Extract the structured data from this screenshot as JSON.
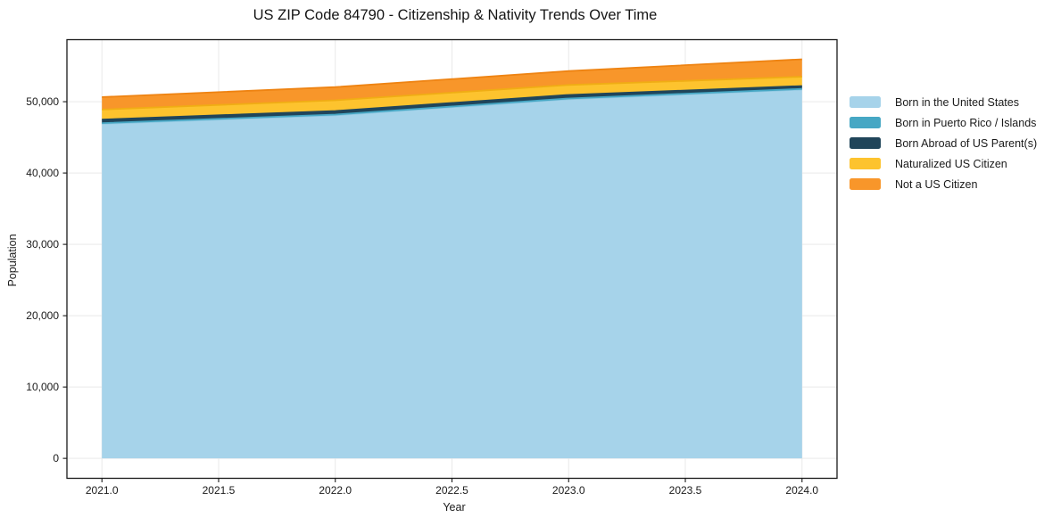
{
  "title": "US ZIP Code 84790 - Citizenship & Nativity Trends Over Time",
  "chart_data": {
    "type": "area",
    "stacked": true,
    "title": "US ZIP Code 84790 - Citizenship & Nativity Trends Over Time",
    "xlabel": "Year",
    "ylabel": "Population",
    "x": [
      2021,
      2022,
      2023,
      2024
    ],
    "series": [
      {
        "name": "Born in the United States",
        "color": "#a6d3ea",
        "edge_color": "#8fc8e2",
        "values": [
          46900,
          48100,
          50350,
          51700
        ]
      },
      {
        "name": "Born in Puerto Rico / Islands",
        "color": "#46a7c4",
        "edge_color": "#46a7c4",
        "values": [
          100,
          100,
          100,
          100
        ]
      },
      {
        "name": "Born Abroad of US Parent(s)",
        "color": "#20455a",
        "edge_color": "#20455a",
        "values": [
          500,
          500,
          500,
          400
        ]
      },
      {
        "name": "Naturalized US Citizen",
        "color": "#fdc32e",
        "edge_color": "#f0ad14",
        "values": [
          1400,
          1500,
          1400,
          1300
        ]
      },
      {
        "name": "Not a US Citizen",
        "color": "#f8962a",
        "edge_color": "#ee8312",
        "values": [
          1750,
          1850,
          1950,
          2450
        ]
      }
    ],
    "stack_totals": [
      50650,
      52050,
      54300,
      55950
    ],
    "xticks": {
      "values": [
        2021.0,
        2021.5,
        2022.0,
        2022.5,
        2023.0,
        2023.5,
        2024.0
      ],
      "labels": [
        "2021.0",
        "2021.5",
        "2022.0",
        "2022.5",
        "2023.0",
        "2023.5",
        "2024.0"
      ]
    },
    "yticks": {
      "values": [
        0,
        10000,
        20000,
        30000,
        40000,
        50000
      ],
      "labels": [
        "0",
        "10,000",
        "20,000",
        "30,000",
        "40,000",
        "50,000"
      ]
    },
    "xlim": [
      2020.85,
      2024.15
    ],
    "ylim": [
      -2795,
      58695
    ],
    "grid": true,
    "legend_position": "right of plot",
    "style": {
      "grid_color": "#e9e9e9",
      "spine_color": "#1a1a1a",
      "tick_color": "#1a1a1a",
      "background": "#ffffff",
      "edge_width": 1.8
    }
  }
}
